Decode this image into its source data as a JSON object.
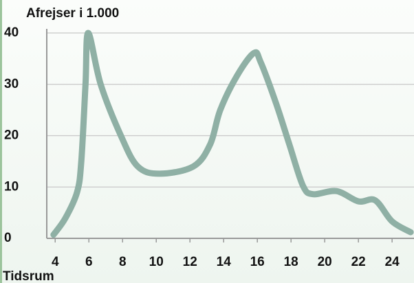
{
  "chart_data": {
    "type": "line",
    "title": "Afrejser i 1.000",
    "x_label": "Tidsrum",
    "x": [
      3.9,
      4.6,
      5.3,
      5.55,
      5.8,
      5.96,
      6.7,
      7.9,
      8.9,
      10.2,
      12.2,
      13.2,
      13.8,
      14.8,
      15.8,
      16.2,
      17.1,
      17.9,
      18.7,
      19.3,
      20.7,
      22,
      23,
      24,
      25.1
    ],
    "series": [
      {
        "name": "Afrejser",
        "color": "#8fb0a5",
        "values": [
          0.7,
          3.9,
          9,
          15,
          30,
          40,
          30,
          20,
          14,
          12.6,
          14,
          18.3,
          25,
          31.7,
          36.1,
          34.3,
          26.4,
          18.3,
          10.3,
          8.6,
          9.2,
          7.2,
          7.4,
          3.3,
          1.2
        ]
      }
    ],
    "xlim": [
      3.5,
      25.3
    ],
    "xticks": [
      4,
      6,
      8,
      10,
      12,
      14,
      16,
      18,
      20,
      22,
      24
    ],
    "ylim": [
      0,
      40
    ],
    "yticks": [
      0,
      10,
      20,
      30,
      40
    ],
    "grid": true
  }
}
